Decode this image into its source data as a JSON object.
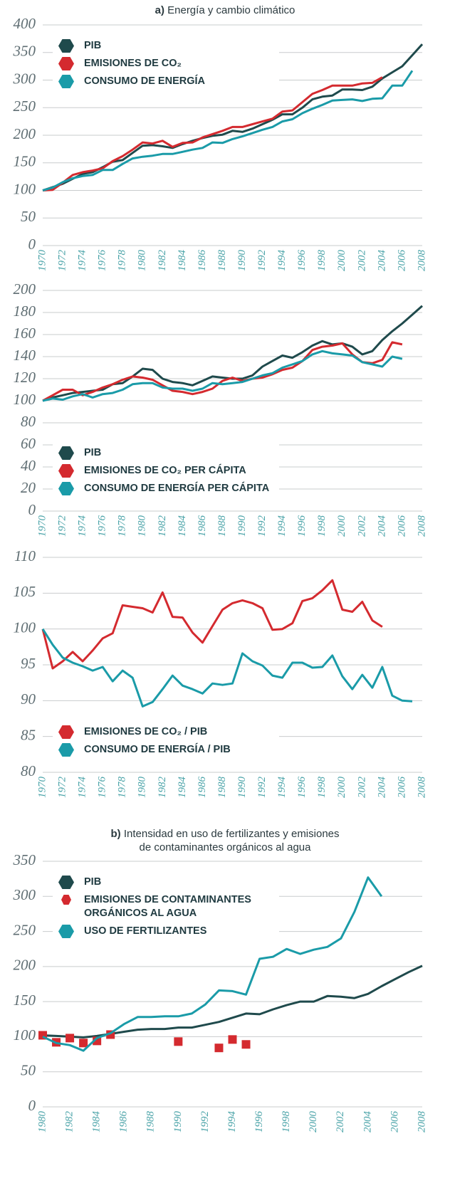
{
  "chart_data": [
    {
      "type": "line",
      "panel": "a)",
      "title": [
        "Energía y cambio climático"
      ],
      "legend": "upper left",
      "grid": "y",
      "xlim": [
        1970,
        2008
      ],
      "xticks": [
        1970,
        1972,
        1974,
        1976,
        1978,
        1980,
        1982,
        1984,
        1986,
        1988,
        1990,
        1992,
        1994,
        1996,
        1998,
        2000,
        2002,
        2004,
        2006,
        2008
      ],
      "ylim": [
        0,
        400
      ],
      "yticks": [
        0,
        50,
        100,
        150,
        200,
        250,
        300,
        350,
        400
      ],
      "x": [
        1970,
        1971,
        1972,
        1973,
        1974,
        1975,
        1976,
        1977,
        1978,
        1979,
        1980,
        1981,
        1982,
        1983,
        1984,
        1985,
        1986,
        1987,
        1988,
        1989,
        1990,
        1991,
        1992,
        1993,
        1994,
        1995,
        1996,
        1997,
        1998,
        1999,
        2000,
        2001,
        2002,
        2003,
        2004,
        2005,
        2006,
        2007,
        2008
      ],
      "series": [
        {
          "name": "PIB",
          "color": "#1f4a4c",
          "values": [
            100,
            106,
            112,
            121,
            130,
            133,
            142,
            152,
            155,
            168,
            181,
            182,
            180,
            177,
            184,
            190,
            195,
            199,
            201,
            208,
            206,
            212,
            220,
            228,
            238,
            238,
            250,
            265,
            270,
            272,
            283,
            283,
            282,
            288,
            303,
            314,
            325,
            345,
            365
          ]
        },
        {
          "name": "EMISIONES DE CO₂",
          "color": "#d42a2f",
          "values": [
            100,
            101,
            114,
            128,
            133,
            136,
            140,
            153,
            162,
            174,
            187,
            185,
            190,
            179,
            186,
            187,
            196,
            202,
            208,
            215,
            215,
            220,
            225,
            230,
            243,
            245,
            260,
            275,
            282,
            290,
            290,
            290,
            294,
            295,
            305,
            null,
            null,
            null,
            null
          ]
        },
        {
          "name": "CONSUMO DE ENERGÍA",
          "color": "#1a9ba8",
          "values": [
            100,
            105,
            115,
            122,
            126,
            128,
            137,
            137,
            148,
            158,
            161,
            163,
            166,
            166,
            170,
            174,
            177,
            187,
            186,
            193,
            198,
            204,
            210,
            215,
            225,
            229,
            240,
            248,
            255,
            263,
            264,
            265,
            262,
            266,
            267,
            290,
            290,
            317,
            null
          ]
        }
      ]
    },
    {
      "type": "line",
      "legend": "lower left",
      "grid": "y",
      "xlim": [
        1970,
        2008
      ],
      "xticks": [
        1970,
        1972,
        1974,
        1976,
        1978,
        1980,
        1982,
        1984,
        1986,
        1988,
        1990,
        1992,
        1994,
        1996,
        1998,
        2000,
        2002,
        2004,
        2006,
        2008
      ],
      "ylim": [
        0,
        200
      ],
      "yticks": [
        0,
        20,
        40,
        60,
        80,
        100,
        120,
        140,
        160,
        180,
        200
      ],
      "x": [
        1970,
        1971,
        1972,
        1973,
        1974,
        1975,
        1976,
        1977,
        1978,
        1979,
        1980,
        1981,
        1982,
        1983,
        1984,
        1985,
        1986,
        1987,
        1988,
        1989,
        1990,
        1991,
        1992,
        1993,
        1994,
        1995,
        1996,
        1997,
        1998,
        1999,
        2000,
        2001,
        2002,
        2003,
        2004,
        2005,
        2006,
        2007,
        2008
      ],
      "series": [
        {
          "name": "PIB",
          "color": "#1f4a4c",
          "values": [
            100,
            103,
            105,
            107,
            108,
            109,
            110,
            115,
            116,
            122,
            129,
            128,
            120,
            117,
            116,
            114,
            118,
            122,
            121,
            120,
            120,
            123,
            131,
            136,
            141,
            139,
            144,
            150,
            154,
            151,
            152,
            149,
            142,
            145,
            155,
            163,
            170,
            178,
            186
          ]
        },
        {
          "name": "EMISIONES DE CO₂ PER CÁPITA",
          "color": "#d42a2f",
          "values": [
            100,
            105,
            110,
            110,
            105,
            108,
            112,
            115,
            119,
            122,
            121,
            119,
            114,
            109,
            108,
            106,
            108,
            111,
            118,
            121,
            118,
            120,
            121,
            124,
            128,
            130,
            136,
            146,
            149,
            150,
            152,
            142,
            135,
            134,
            137,
            153,
            151,
            null,
            null
          ]
        },
        {
          "name": "CONSUMO DE ENERGÍA PER CÁPITA",
          "color": "#1a9ba8",
          "values": [
            100,
            102,
            101,
            104,
            106,
            103,
            106,
            107,
            110,
            115,
            116,
            116,
            112,
            111,
            111,
            109,
            111,
            116,
            115,
            116,
            117,
            120,
            123,
            125,
            130,
            133,
            136,
            142,
            145,
            143,
            142,
            141,
            135,
            133,
            131,
            140,
            138,
            null,
            null
          ]
        }
      ]
    },
    {
      "type": "line",
      "legend": "lower left",
      "grid": "y",
      "xlim": [
        1970,
        2008
      ],
      "xticks": [
        1970,
        1972,
        1974,
        1976,
        1978,
        1980,
        1982,
        1984,
        1986,
        1988,
        1990,
        1992,
        1994,
        1996,
        1998,
        2000,
        2002,
        2004,
        2006,
        2008
      ],
      "ylim": [
        80,
        110
      ],
      "yticks": [
        80,
        85,
        90,
        95,
        100,
        105,
        110
      ],
      "x": [
        1970,
        1971,
        1972,
        1973,
        1974,
        1975,
        1976,
        1977,
        1978,
        1979,
        1980,
        1981,
        1982,
        1983,
        1984,
        1985,
        1986,
        1987,
        1988,
        1989,
        1990,
        1991,
        1992,
        1993,
        1994,
        1995,
        1996,
        1997,
        1998,
        1999,
        2000,
        2001,
        2002,
        2003,
        2004,
        2005,
        2006,
        2007,
        2008
      ],
      "series": [
        {
          "name": "EMISIONES DE CO₂ / PIB",
          "color": "#d42a2f",
          "values": [
            100,
            94.5,
            95.5,
            96.8,
            95.5,
            97,
            98.7,
            99.4,
            103.3,
            103.1,
            102.9,
            102.3,
            105.1,
            101.7,
            101.6,
            99.5,
            98.1,
            100.4,
            102.7,
            103.6,
            104,
            103.6,
            102.9,
            99.9,
            100,
            100.8,
            103.9,
            104.3,
            105.4,
            106.8,
            102.7,
            102.4,
            103.8,
            101.2,
            100.3,
            null,
            null,
            null,
            null
          ]
        },
        {
          "name": "CONSUMO DE ENERGÍA  / PIB",
          "color": "#1a9ba8",
          "values": [
            100,
            97.8,
            96,
            95.3,
            94.8,
            94.2,
            94.7,
            92.7,
            94.2,
            93.2,
            89.2,
            89.8,
            91.6,
            93.5,
            92.1,
            91.6,
            91,
            92.4,
            92.2,
            92.4,
            96.6,
            95.5,
            94.9,
            93.5,
            93.2,
            95.3,
            95.3,
            94.6,
            94.7,
            96.3,
            93.4,
            91.6,
            93.6,
            91.8,
            94.7,
            90.7,
            90,
            89.9,
            null
          ]
        }
      ]
    },
    {
      "type": "line",
      "panel": "b)",
      "title": [
        "Intensidad en uso de fertilizantes y emisiones",
        "de contaminantes orgánicos al agua"
      ],
      "legend": "upper left",
      "grid": "y",
      "xlim": [
        1980,
        2008
      ],
      "xticks": [
        1980,
        1982,
        1984,
        1986,
        1988,
        1990,
        1992,
        1994,
        1996,
        1998,
        2000,
        2002,
        2004,
        2006,
        2008
      ],
      "ylim": [
        0,
        350
      ],
      "yticks": [
        0,
        50,
        100,
        150,
        200,
        250,
        300,
        350
      ],
      "x": [
        1980,
        1981,
        1982,
        1983,
        1984,
        1985,
        1986,
        1987,
        1988,
        1989,
        1990,
        1991,
        1992,
        1993,
        1994,
        1995,
        1996,
        1997,
        1998,
        1999,
        2000,
        2001,
        2002,
        2003,
        2004,
        2005,
        2006,
        2007,
        2008
      ],
      "series": [
        {
          "name": "PIB",
          "color": "#1f4a4c",
          "values": [
            102,
            101,
            100,
            99,
            101,
            104,
            107,
            110,
            111,
            111,
            113,
            113,
            117,
            121,
            127,
            133,
            132,
            139,
            145,
            150,
            150,
            158,
            157,
            155,
            161,
            172,
            182,
            192,
            201
          ]
        },
        {
          "name": "EMISIONES DE CONTAMINANTES ORGÁNICOS AL AGUA",
          "color": "#d42a2f",
          "marker": "square",
          "values": [
            102,
            92,
            98,
            91,
            94,
            103,
            null,
            null,
            null,
            null,
            93,
            null,
            null,
            84,
            96,
            89,
            null,
            null,
            null,
            null,
            null,
            null,
            null,
            null,
            null,
            null,
            null,
            null,
            null
          ]
        },
        {
          "name": "USO DE FERTILIZANTES",
          "color": "#1a9ba8",
          "values": [
            100,
            91,
            88,
            80,
            98,
            105,
            118,
            128,
            128,
            129,
            129,
            133,
            146,
            166,
            165,
            160,
            211,
            214,
            225,
            218,
            224,
            228,
            240,
            278,
            327,
            300,
            null,
            null,
            null
          ]
        }
      ]
    }
  ]
}
